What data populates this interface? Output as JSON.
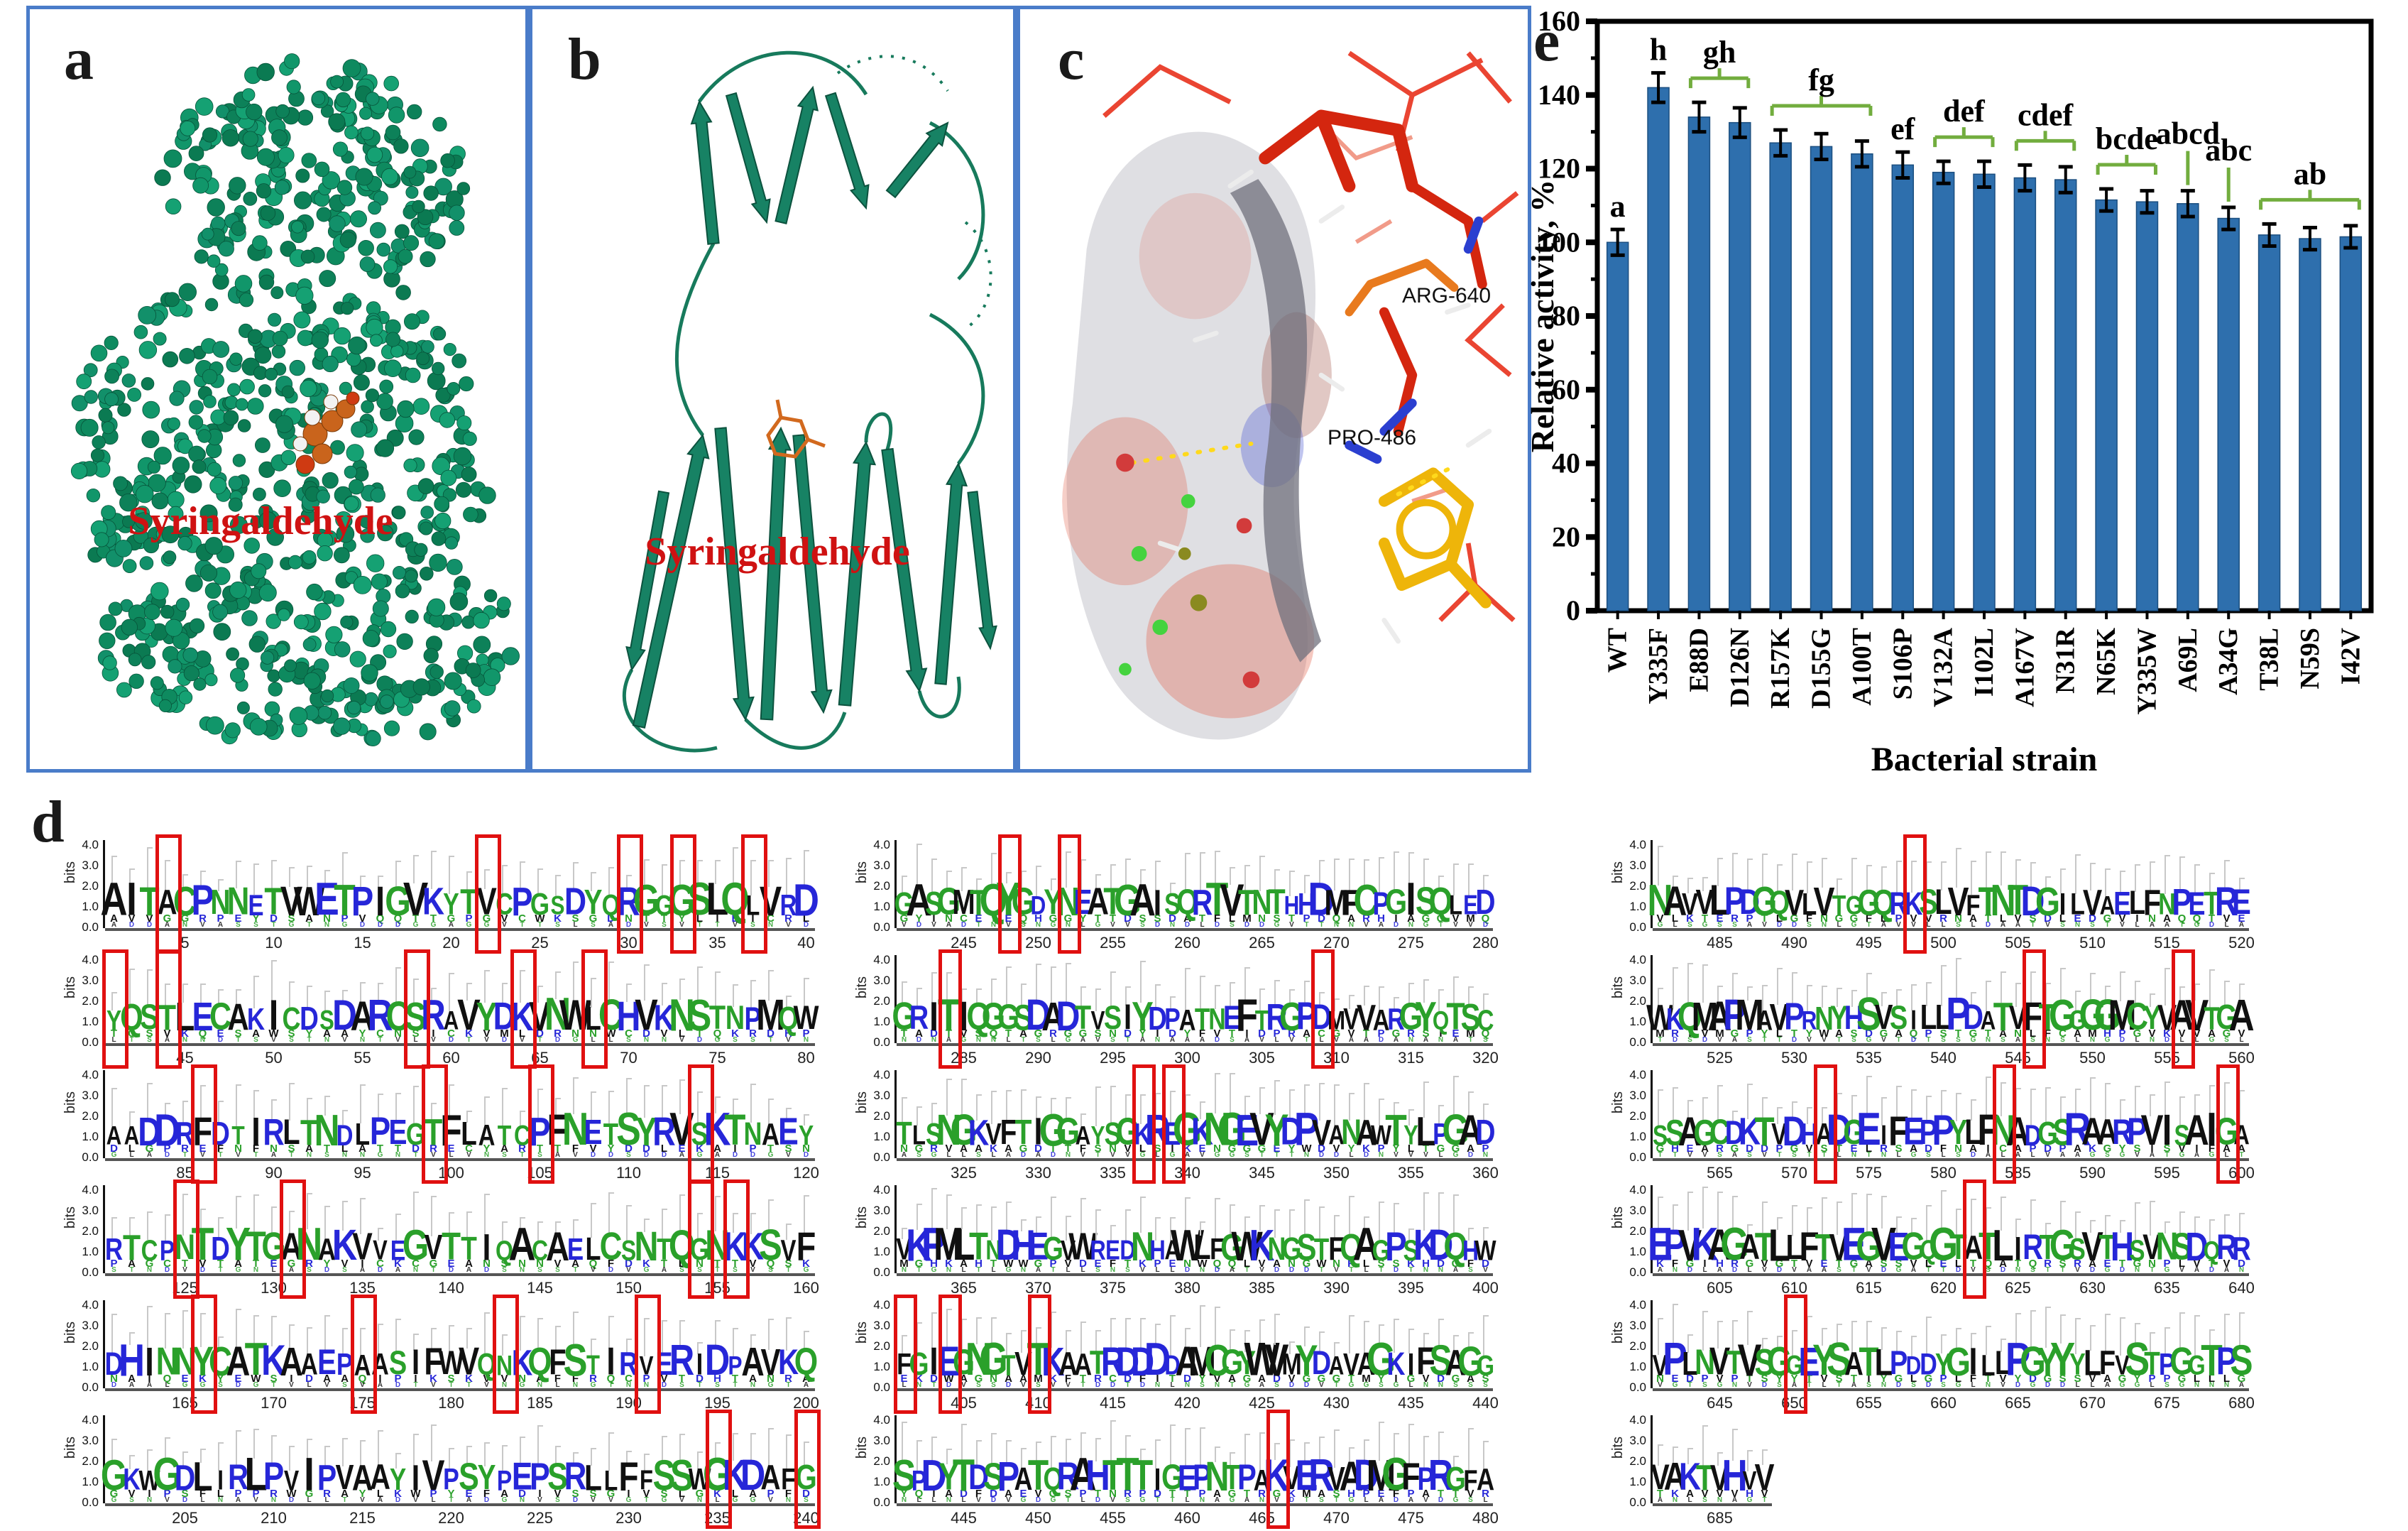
{
  "panels": {
    "a": {
      "label": "a",
      "ligand_label": "Syringaldehyde"
    },
    "b": {
      "label": "b",
      "ligand_label": "Syringaldehyde"
    },
    "c": {
      "label": "c",
      "residues": [
        "ARG-640",
        "PRO-486"
      ]
    },
    "d": {
      "label": "d"
    },
    "e": {
      "label": "e"
    }
  },
  "colors": {
    "panel_border": "#4a7cc9",
    "bar_fill": "#2e6fad",
    "bar_edge": "#1c4f80",
    "bracket_green": "#72ad3e",
    "protein_green": "#12906a",
    "ligand_orange": "#c9641c",
    "label_red": "#cf1212",
    "logo_green": "#2aa02a",
    "logo_blue": "#2626d8",
    "logo_black": "#101010",
    "box_red": "#e01010"
  },
  "chart_data": {
    "type": "bar",
    "title": "",
    "xlabel": "Bacterial strain",
    "ylabel": "Relative activity, %",
    "ylim": [
      0,
      160
    ],
    "yticks": [
      0,
      20,
      40,
      60,
      80,
      100,
      120,
      140,
      160
    ],
    "grid": false,
    "legend": "none",
    "categories": [
      "WT",
      "Y335F",
      "E88D",
      "D126N",
      "R157K",
      "D155G",
      "A100T",
      "S106P",
      "V132A",
      "I102L",
      "A167V",
      "N31R",
      "N65K",
      "Y335W",
      "A69L",
      "A34G",
      "T38L",
      "N59S",
      "I42V"
    ],
    "values": [
      100,
      142,
      134,
      132.5,
      127,
      126,
      124,
      121,
      119,
      118.5,
      117.5,
      117,
      111.5,
      111,
      110.5,
      106.5,
      102,
      101,
      101.5
    ],
    "errors": [
      3.5,
      4,
      4,
      4,
      3.5,
      3.5,
      3.5,
      3.5,
      3,
      3.5,
      3.5,
      3.5,
      3,
      3,
      3.5,
      3,
      3,
      3,
      3
    ],
    "annotations": [
      {
        "label": "a",
        "bars": [
          0
        ],
        "style": "plain"
      },
      {
        "label": "h",
        "bars": [
          1
        ],
        "style": "plain"
      },
      {
        "label": "gh",
        "bars": [
          2,
          3
        ],
        "style": "bracket"
      },
      {
        "label": "fg",
        "bars": [
          4,
          5,
          6
        ],
        "style": "bracket"
      },
      {
        "label": "ef",
        "bars": [
          7
        ],
        "style": "plain"
      },
      {
        "label": "def",
        "bars": [
          8,
          9
        ],
        "style": "bracket"
      },
      {
        "label": "cdef",
        "bars": [
          10,
          11
        ],
        "style": "bracket"
      },
      {
        "label": "bcde",
        "bars": [
          12,
          13
        ],
        "style": "bracket"
      },
      {
        "label": "abcd",
        "bars": [
          14
        ],
        "style": "line"
      },
      {
        "label": "abc",
        "bars": [
          15
        ],
        "style": "line"
      },
      {
        "label": "ab",
        "bars": [
          16,
          17,
          18
        ],
        "style": "bracket"
      }
    ]
  },
  "logo": {
    "ylabel": "bits",
    "yticks": [
      "4.0",
      "3.0",
      "2.0",
      "1.0",
      "0.0"
    ],
    "blocks": [
      {
        "start": 1,
        "end": 40,
        "consensus": "AITACPNNETVWETPIGVKYTVCPGSDYQRGGGSLQLVRD",
        "boxes": [
          4,
          22,
          30,
          33,
          37
        ]
      },
      {
        "start": 41,
        "end": 80,
        "consensus": "YQSTLECAKICDSDARCSRAVYDKVNWLCHVKNSTNPMQW",
        "boxes": [
          41,
          44,
          58,
          64,
          68
        ]
      },
      {
        "start": 81,
        "end": 120,
        "consensus": "AADDRFDTIRLTNDLPEGTFLATCPFNETSYRVSKTNAEY",
        "boxes": [
          86,
          99,
          105,
          114
        ]
      },
      {
        "start": 121,
        "end": 160,
        "consensus": "RTCPNTDYTGANAKVVEGVTTIQACAELCSNTQGNKKSVF",
        "boxes": [
          125,
          131,
          154,
          156
        ]
      },
      {
        "start": 161,
        "end": 200,
        "consensus": "DHINNYCATKAAEPAASIFWVQNKQFSTIRVERIDPAVKQ",
        "boxes": [
          166,
          175,
          183,
          191
        ]
      },
      {
        "start": 201,
        "end": 240,
        "consensus": "GKWGDLIRLPVIPVAAYIVPSYPEPSRLLFFSSWGKDAFG",
        "boxes": [
          235,
          240
        ]
      },
      {
        "start": 241,
        "end": 280,
        "consensus": "GASGMTQYGDYNEATGAISQRTVTNTHHDMFCPGISQLED",
        "boxes": [
          248,
          252
        ]
      },
      {
        "start": 281,
        "end": 320,
        "consensus": "GRITIQGGSDADTVSIYDPATNEFTRGPDMVVARGYQTSC",
        "boxes": [
          284,
          309
        ]
      },
      {
        "start": 321,
        "end": 360,
        "consensus": "TLSNGKVFTIGGAYSGKREGKNGEVYDPVANAWTYLPGAD",
        "boxes": [
          337,
          339
        ]
      },
      {
        "start": 361,
        "end": 400,
        "consensus": "VKPMLTNDHEGVWREDNHAWLFGWKNGSTFQAGPSKDQHW",
        "boxes": []
      },
      {
        "start": 401,
        "end": 440,
        "consensus": "FGIEGNGTVTKAATRDDDDAMCGYWVMYDAVAGKIFSAGG",
        "boxes": [
          401,
          404,
          410
        ]
      },
      {
        "start": 441,
        "end": 480,
        "consensus": "SPDYTDSPATQRAHTTTIGEPNTPAKVERVADMGFPRGFA",
        "boxes": [
          466
        ]
      },
      {
        "start": 481,
        "end": 520,
        "consensus": "NAVVLPDGQVLVTGGQRKSLVFTNTDGILVAELFNPETRE",
        "boxes": [
          498
        ]
      },
      {
        "start": 521,
        "end": 560,
        "consensus": "WKQMAPMAVPRNYHSVSILLPDATVFTGGGGMCYVAVTGA",
        "boxes": [
          546,
          556
        ]
      },
      {
        "start": 561,
        "end": 600,
        "consensus": "SSAGCDKTVDHADGEIFEPPYLFNADGSRAARPVISAIGA",
        "boxes": [
          572,
          584,
          599
        ]
      },
      {
        "start": 601,
        "end": 640,
        "consensus": "EPVKAGATLLFTVEGVEGQGTATLIRTGSVTHSVNSDQRR",
        "boxes": [
          622
        ]
      },
      {
        "start": 641,
        "end": 680,
        "consensus": "VPLNVTVSGGEYSATLPDDYGILLPGYYYLFVSTPGGTPS",
        "boxes": [
          650
        ]
      },
      {
        "start": 681,
        "end": 688,
        "consensus": "VAKTVHVV",
        "boxes": []
      }
    ]
  }
}
